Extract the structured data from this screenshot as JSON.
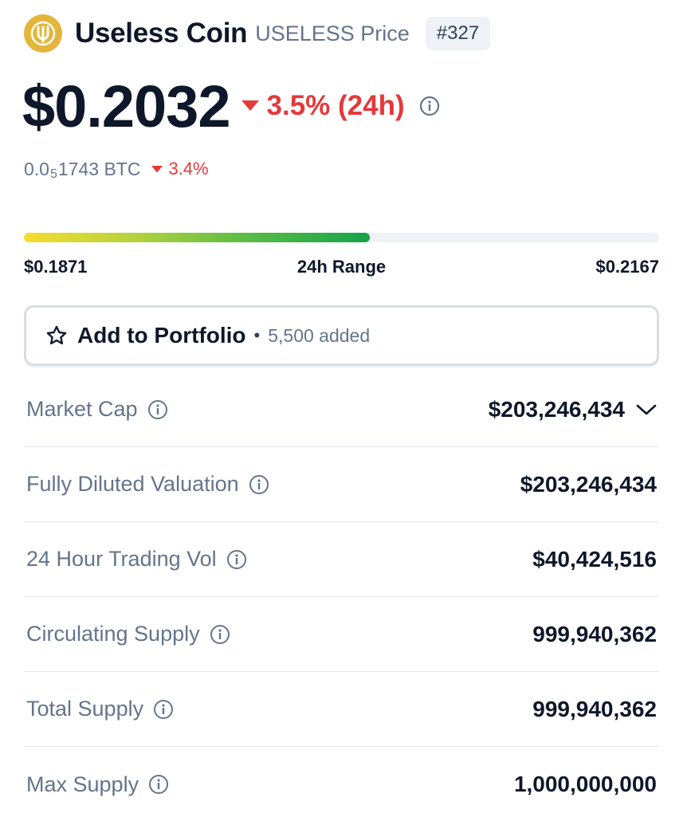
{
  "coin": {
    "name": "Useless Coin",
    "symbol_label": "USELESS Price",
    "rank": "#327",
    "logo_icon": "useless-coin-logo-icon",
    "logo_color": "#e3b53a"
  },
  "price": {
    "value": "$0.2032",
    "change": "3.5% (24h)",
    "change_color": "#e5383b",
    "btc_prefix": "0.0",
    "btc_subscript": "5",
    "btc_rest": "1743 BTC",
    "btc_change": "3.4%"
  },
  "range": {
    "low": "$0.1871",
    "label": "24h Range",
    "high": "$0.2167",
    "fill_fraction": 0.545
  },
  "portfolio": {
    "label": "Add to Portfolio",
    "separator": "•",
    "count": "5,500 added"
  },
  "stats": [
    {
      "label": "Market Cap",
      "value": "$203,246,434",
      "expandable": true
    },
    {
      "label": "Fully Diluted Valuation",
      "value": "$203,246,434"
    },
    {
      "label": "24 Hour Trading Vol",
      "value": "$40,424,516"
    },
    {
      "label": "Circulating Supply",
      "value": "999,940,362"
    },
    {
      "label": "Total Supply",
      "value": "999,940,362"
    },
    {
      "label": "Max Supply",
      "value": "1,000,000,000"
    }
  ]
}
